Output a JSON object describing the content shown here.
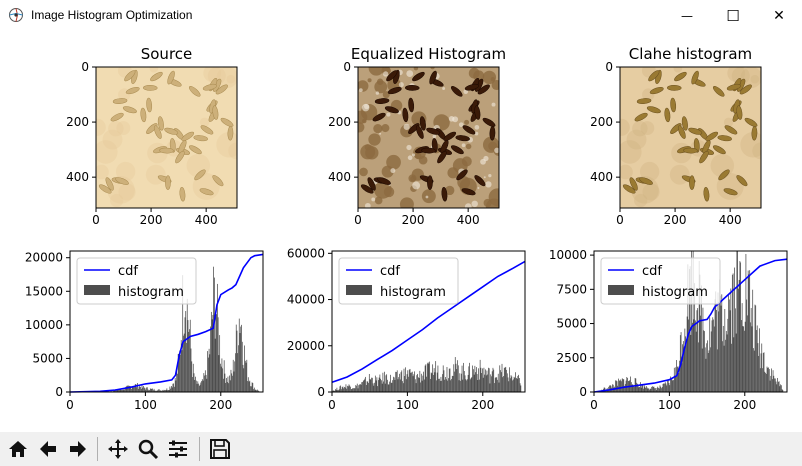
{
  "window": {
    "title": "Image Histogram Optimization",
    "controls": {
      "minimize": "—",
      "maximize": "☐",
      "close": "✕"
    }
  },
  "toolbar": {
    "buttons": [
      "home-icon",
      "back-arrow-icon",
      "forward-arrow-icon",
      "pan-icon",
      "zoom-icon",
      "configure-subplots-icon",
      "save-icon"
    ]
  },
  "colors": {
    "cdf": "#0000ff",
    "histogram": "#4d4d4d",
    "toolbar_bg": "#f0f0f0"
  },
  "chart_data": [
    {
      "type": "image",
      "title": "Source",
      "x_ticks": [
        "0",
        "200",
        "400"
      ],
      "y_ticks": [
        "0",
        "200",
        "400"
      ],
      "xlim": [
        0,
        512
      ],
      "ylim": [
        512,
        0
      ],
      "tone": "light"
    },
    {
      "type": "image",
      "title": "Equalized Histogram",
      "x_ticks": [
        "0",
        "200",
        "400"
      ],
      "y_ticks": [
        "0",
        "200",
        "400"
      ],
      "xlim": [
        0,
        512
      ],
      "ylim": [
        512,
        0
      ],
      "tone": "equalized"
    },
    {
      "type": "image",
      "title": "Clahe histogram",
      "x_ticks": [
        "0",
        "200",
        "400"
      ],
      "y_ticks": [
        "0",
        "200",
        "400"
      ],
      "xlim": [
        0,
        512
      ],
      "ylim": [
        512,
        0
      ],
      "tone": "clahe"
    },
    {
      "type": "line+bar",
      "title": "",
      "xlim": [
        0,
        256
      ],
      "ylim": [
        0,
        21000
      ],
      "x_ticks": [
        "0",
        "100",
        "200"
      ],
      "y_ticks": [
        "0",
        "5000",
        "10000",
        "15000",
        "20000"
      ],
      "legend": {
        "entries": [
          "cdf",
          "histogram"
        ],
        "placement": "upper-left"
      },
      "cdf": {
        "x": [
          0,
          40,
          60,
          80,
          100,
          120,
          135,
          140,
          145,
          150,
          160,
          170,
          180,
          190,
          195,
          200,
          210,
          215,
          220,
          230,
          240,
          245,
          256
        ],
        "y": [
          0,
          100,
          300,
          700,
          1200,
          1500,
          1800,
          2500,
          5500,
          7500,
          8300,
          8600,
          9000,
          9500,
          13000,
          14500,
          15200,
          15500,
          16000,
          18500,
          20000,
          20300,
          20500
        ]
      },
      "histogram": {
        "x": [
          50,
          60,
          70,
          80,
          85,
          90,
          95,
          100,
          110,
          120,
          130,
          140,
          145,
          148,
          150,
          152,
          155,
          158,
          160,
          162,
          165,
          170,
          175,
          180,
          185,
          188,
          190,
          192,
          195,
          198,
          200,
          205,
          210,
          215,
          220,
          222,
          225,
          228,
          230,
          235,
          240,
          245,
          250
        ],
        "y": [
          100,
          300,
          500,
          900,
          1100,
          1000,
          800,
          600,
          400,
          300,
          500,
          2000,
          6000,
          12000,
          16000,
          18000,
          14000,
          10000,
          7000,
          4000,
          2000,
          1000,
          1500,
          3000,
          7000,
          12000,
          15000,
          16000,
          12000,
          8000,
          6000,
          3000,
          2000,
          3000,
          8000,
          11000,
          13000,
          10000,
          7000,
          3000,
          1500,
          500,
          200
        ]
      },
      "histogram_max": 20000
    },
    {
      "type": "line+bar",
      "title": "",
      "xlim": [
        0,
        256
      ],
      "ylim": [
        0,
        61000
      ],
      "x_ticks": [
        "0",
        "100",
        "200"
      ],
      "y_ticks": [
        "0",
        "20000",
        "40000",
        "60000"
      ],
      "legend": {
        "entries": [
          "cdf",
          "histogram"
        ],
        "placement": "upper-left"
      },
      "cdf": {
        "x": [
          0,
          20,
          40,
          60,
          80,
          100,
          120,
          140,
          160,
          180,
          200,
          220,
          240,
          256
        ],
        "y": [
          4200,
          6500,
          10000,
          14000,
          18000,
          22500,
          27000,
          32000,
          36500,
          41000,
          45500,
          50000,
          53500,
          56500
        ]
      },
      "histogram": {
        "x": [
          0,
          10,
          20,
          30,
          40,
          50,
          60,
          70,
          80,
          90,
          100,
          110,
          120,
          130,
          140,
          150,
          160,
          170,
          180,
          190,
          200,
          210,
          220,
          230,
          240,
          250
        ],
        "y": [
          500,
          2000,
          3000,
          2500,
          4000,
          6500,
          5000,
          7000,
          5500,
          8000,
          9000,
          7000,
          8500,
          10000,
          11000,
          9500,
          12000,
          10000,
          9000,
          11000,
          10000,
          8000,
          9000,
          9500,
          7000,
          5000
        ]
      },
      "histogram_max": 60000
    },
    {
      "type": "line+bar",
      "title": "",
      "xlim": [
        0,
        256
      ],
      "ylim": [
        0,
        10300
      ],
      "x_ticks": [
        "0",
        "100",
        "200"
      ],
      "y_ticks": [
        "0",
        "2500",
        "5000",
        "7500",
        "10000"
      ],
      "legend": {
        "entries": [
          "cdf",
          "histogram"
        ],
        "placement": "upper-left"
      },
      "cdf": {
        "x": [
          0,
          20,
          40,
          60,
          80,
          100,
          110,
          115,
          120,
          125,
          130,
          135,
          140,
          150,
          155,
          160,
          180,
          200,
          220,
          240,
          256
        ],
        "y": [
          0,
          150,
          350,
          500,
          650,
          900,
          1200,
          2000,
          3200,
          4200,
          4800,
          5000,
          5200,
          5300,
          5700,
          6200,
          7200,
          8200,
          9200,
          9600,
          9700
        ]
      },
      "histogram": {
        "x": [
          10,
          20,
          30,
          40,
          45,
          50,
          60,
          70,
          80,
          90,
          100,
          110,
          115,
          120,
          125,
          130,
          135,
          140,
          145,
          150,
          155,
          160,
          165,
          170,
          175,
          180,
          185,
          190,
          195,
          200,
          205,
          210,
          215,
          220,
          230,
          240,
          250
        ],
        "y": [
          200,
          400,
          700,
          900,
          1000,
          900,
          600,
          400,
          300,
          400,
          800,
          2000,
          4000,
          6000,
          8000,
          9500,
          8500,
          7000,
          5500,
          4500,
          5000,
          6000,
          6500,
          6000,
          7000,
          7500,
          8000,
          8500,
          9000,
          8500,
          7500,
          6000,
          4500,
          3500,
          2000,
          1000,
          300
        ]
      },
      "histogram_max": 10000
    }
  ]
}
